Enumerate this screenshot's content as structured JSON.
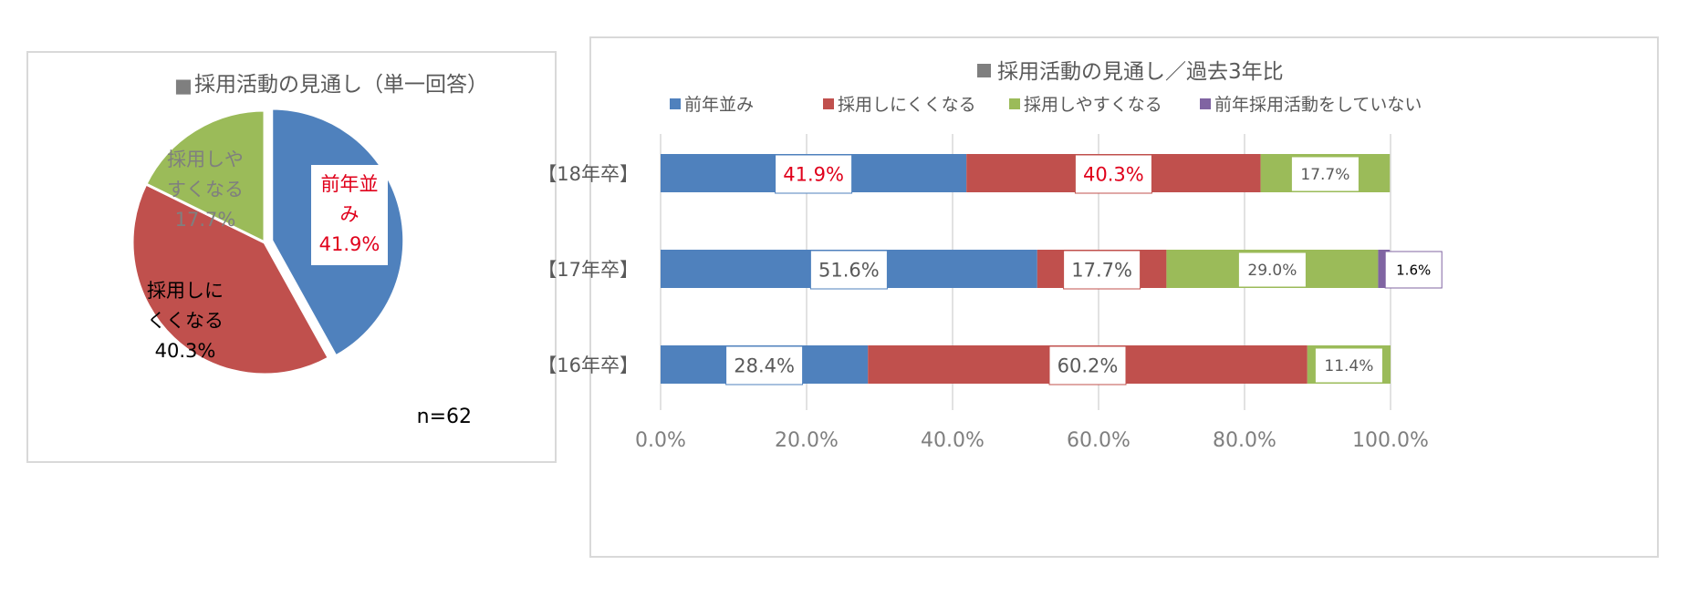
{
  "colors": {
    "blue": "#4f81bd",
    "red": "#c0504d",
    "green": "#9bbb59",
    "purple": "#8064a2",
    "title_gray": "#595959",
    "marker_gray": "#7f7f7f",
    "axis_gray": "#7f7f7f",
    "grid": "#d9d9d9",
    "label_red": "#e0001b"
  },
  "pie_chart": {
    "title_marker": "■",
    "title": "採用活動の見通し（単一回答）",
    "n_label": "n=62",
    "slices": [
      {
        "name": "前年並み",
        "value": 41.9,
        "label_lines": [
          "前年並",
          "み",
          "41.9%"
        ],
        "color": "blue"
      },
      {
        "name": "採用しにくくなる",
        "value": 40.3,
        "label_lines": [
          "採用しに",
          "くくなる",
          "40.3%"
        ],
        "color": "red"
      },
      {
        "name": "採用しやすくなる",
        "value": 17.7,
        "label_lines": [
          "採用しや",
          "すくなる",
          "17.7%"
        ],
        "color": "green"
      }
    ]
  },
  "chart_data": {
    "type": "bar",
    "orientation": "horizontal",
    "stacked": true,
    "title": "採用活動の見通し／過去3年比",
    "categories": [
      "【18年卒】",
      "【17年卒】",
      "【16年卒】"
    ],
    "series": [
      {
        "name": "前年並み",
        "color": "blue",
        "values": [
          41.9,
          51.6,
          28.4
        ],
        "labels": [
          "41.9%",
          "51.6%",
          "28.4%"
        ]
      },
      {
        "name": "採用しにくくなる",
        "color": "red",
        "values": [
          40.3,
          17.7,
          60.2
        ],
        "labels": [
          "40.3%",
          "17.7%",
          "60.2%"
        ]
      },
      {
        "name": "採用しやすくなる",
        "color": "green",
        "values": [
          17.7,
          29.0,
          11.4
        ],
        "labels": [
          "17.7%",
          "29.0%",
          "11.4%"
        ]
      },
      {
        "name": "前年採用活動をしていない",
        "color": "purple",
        "values": [
          0,
          1.6,
          0
        ],
        "labels": [
          "",
          "1.6%",
          ""
        ]
      }
    ],
    "x_ticks": [
      "0.0%",
      "20.0%",
      "40.0%",
      "60.0%",
      "80.0%",
      "100.0%"
    ],
    "xlim": [
      0,
      100
    ],
    "grid": true,
    "legend_position": "top"
  }
}
